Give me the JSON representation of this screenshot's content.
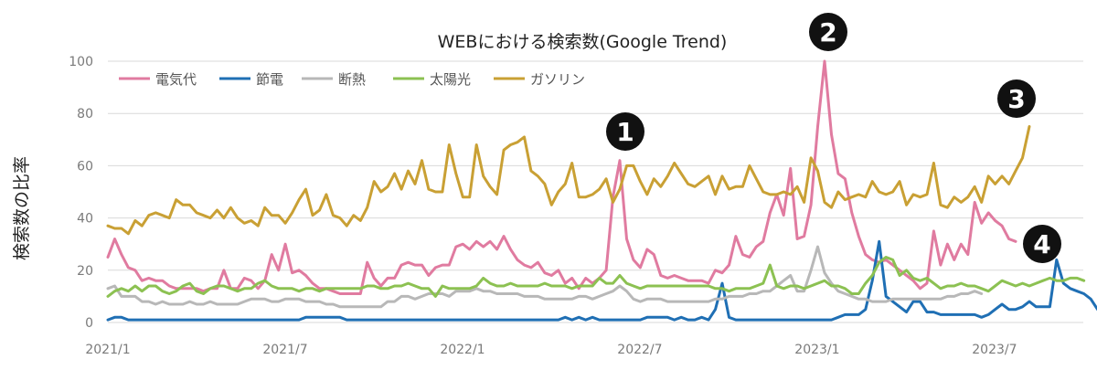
{
  "chart_data": {
    "type": "line",
    "title": "WEBにおける検索数(Google Trend)",
    "ylabel": "検索数の比率",
    "xlabel": "",
    "ylim": [
      0,
      100
    ],
    "yticks": [
      "0",
      "20",
      "40",
      "60",
      "80",
      "100"
    ],
    "xticks": [
      "2021/1",
      "2021/7",
      "2022/1",
      "2022/7",
      "2023/1",
      "2023/7"
    ],
    "x_start": "2021-01",
    "points_per_month": 4.33,
    "grid": true,
    "legend_position": "top-left",
    "series": [
      {
        "name": "電気代",
        "color": "#e07ba0",
        "values": [
          25,
          32,
          26,
          21,
          20,
          16,
          17,
          16,
          16,
          14,
          13,
          13,
          13,
          13,
          12,
          13,
          13,
          20,
          13,
          13,
          17,
          16,
          13,
          16,
          26,
          20,
          30,
          19,
          20,
          18,
          15,
          13,
          13,
          12,
          11,
          11,
          11,
          11,
          23,
          17,
          14,
          17,
          17,
          22,
          23,
          22,
          22,
          18,
          21,
          22,
          22,
          29,
          30,
          28,
          31,
          29,
          31,
          28,
          33,
          28,
          24,
          22,
          21,
          23,
          19,
          18,
          20,
          15,
          17,
          13,
          17,
          15,
          17,
          20,
          48,
          62,
          32,
          24,
          21,
          28,
          26,
          18,
          17,
          18,
          17,
          16,
          16,
          16,
          15,
          20,
          19,
          22,
          33,
          26,
          25,
          29,
          31,
          42,
          49,
          41,
          59,
          32,
          33,
          45,
          75,
          100,
          72,
          57,
          55,
          42,
          33,
          26,
          24,
          23,
          24,
          22,
          20,
          18,
          16,
          13,
          15,
          35,
          22,
          30,
          24,
          30,
          26,
          46,
          38,
          42,
          39,
          37,
          32,
          31
        ]
      },
      {
        "name": "節電",
        "color": "#1f6fb4",
        "values": [
          1,
          2,
          2,
          1,
          1,
          1,
          1,
          1,
          1,
          1,
          1,
          1,
          1,
          1,
          1,
          1,
          1,
          1,
          1,
          1,
          1,
          1,
          1,
          1,
          1,
          1,
          1,
          1,
          1,
          2,
          2,
          2,
          2,
          2,
          2,
          1,
          1,
          1,
          1,
          1,
          1,
          1,
          1,
          1,
          1,
          1,
          1,
          1,
          1,
          1,
          1,
          1,
          1,
          1,
          1,
          1,
          1,
          1,
          1,
          1,
          1,
          1,
          1,
          1,
          1,
          1,
          1,
          2,
          1,
          2,
          1,
          2,
          1,
          1,
          1,
          1,
          1,
          1,
          1,
          2,
          2,
          2,
          2,
          1,
          2,
          1,
          1,
          2,
          1,
          5,
          15,
          2,
          1,
          1,
          1,
          1,
          1,
          1,
          1,
          1,
          1,
          1,
          1,
          1,
          1,
          1,
          1,
          2,
          3,
          3,
          3,
          5,
          16,
          31,
          10,
          8,
          6,
          4,
          8,
          8,
          4,
          4,
          3,
          3,
          3,
          3,
          3,
          3,
          2,
          3,
          5,
          7,
          5,
          5,
          6,
          8,
          6,
          6,
          6,
          24,
          15,
          13,
          12,
          11,
          9,
          5,
          7,
          10,
          14,
          9,
          6,
          5,
          4,
          4,
          3,
          3,
          2,
          2,
          3,
          3,
          3,
          2,
          2,
          3,
          3,
          3,
          3,
          4,
          4,
          4,
          4,
          4,
          4,
          3,
          4
        ]
      },
      {
        "name": "断熱",
        "color": "#b8b8b8",
        "values": [
          13,
          14,
          10,
          10,
          10,
          8,
          8,
          7,
          8,
          7,
          7,
          7,
          8,
          7,
          7,
          8,
          7,
          7,
          7,
          7,
          8,
          9,
          9,
          9,
          8,
          8,
          9,
          9,
          9,
          8,
          8,
          8,
          7,
          7,
          6,
          6,
          6,
          6,
          6,
          6,
          6,
          8,
          8,
          10,
          10,
          9,
          10,
          11,
          11,
          11,
          10,
          12,
          12,
          12,
          13,
          12,
          12,
          11,
          11,
          11,
          11,
          10,
          10,
          10,
          9,
          9,
          9,
          9,
          9,
          10,
          10,
          9,
          10,
          11,
          12,
          14,
          12,
          9,
          8,
          9,
          9,
          9,
          8,
          8,
          8,
          8,
          8,
          8,
          8,
          9,
          9,
          10,
          10,
          10,
          11,
          11,
          12,
          12,
          14,
          16,
          18,
          12,
          12,
          20,
          29,
          19,
          15,
          12,
          11,
          10,
          9,
          9,
          8,
          8,
          8,
          9,
          9,
          9,
          9,
          9,
          9,
          9,
          9,
          10,
          10,
          11,
          11,
          12,
          11
        ]
      },
      {
        "name": "太陽光",
        "color": "#8cc152",
        "values": [
          10,
          12,
          13,
          12,
          14,
          12,
          14,
          14,
          12,
          11,
          12,
          14,
          15,
          12,
          11,
          13,
          14,
          14,
          13,
          12,
          13,
          13,
          15,
          16,
          14,
          13,
          13,
          13,
          12,
          13,
          13,
          12,
          13,
          13,
          13,
          13,
          13,
          13,
          14,
          14,
          13,
          13,
          14,
          14,
          15,
          14,
          13,
          13,
          10,
          14,
          13,
          13,
          13,
          13,
          14,
          17,
          15,
          14,
          14,
          15,
          14,
          14,
          14,
          14,
          15,
          14,
          14,
          14,
          13,
          14,
          14,
          14,
          17,
          15,
          15,
          18,
          15,
          14,
          13,
          14,
          14,
          14,
          14,
          14,
          14,
          14,
          14,
          14,
          14,
          13,
          13,
          12,
          13,
          13,
          13,
          14,
          15,
          22,
          14,
          13,
          14,
          14,
          13,
          14,
          15,
          16,
          14,
          14,
          13,
          11,
          11,
          15,
          18,
          23,
          25,
          24,
          18,
          20,
          17,
          16,
          17,
          15,
          13,
          14,
          14,
          15,
          14,
          14,
          13,
          12,
          14,
          16,
          15,
          14,
          15,
          14,
          15,
          16,
          17,
          16,
          16,
          17,
          17,
          16
        ]
      },
      {
        "name": "ガソリン",
        "color": "#c9a034",
        "values": [
          37,
          36,
          36,
          34,
          39,
          37,
          41,
          42,
          41,
          40,
          47,
          45,
          45,
          42,
          41,
          40,
          43,
          40,
          44,
          40,
          38,
          39,
          37,
          44,
          41,
          41,
          38,
          42,
          47,
          51,
          41,
          43,
          49,
          41,
          40,
          37,
          41,
          39,
          44,
          54,
          50,
          52,
          57,
          51,
          58,
          53,
          62,
          51,
          50,
          50,
          68,
          57,
          48,
          48,
          68,
          56,
          52,
          49,
          66,
          68,
          69,
          71,
          58,
          56,
          53,
          45,
          50,
          53,
          61,
          48,
          48,
          49,
          51,
          55,
          46,
          51,
          60,
          60,
          54,
          49,
          55,
          52,
          56,
          61,
          57,
          53,
          52,
          54,
          56,
          49,
          56,
          51,
          52,
          52,
          60,
          55,
          50,
          49,
          49,
          50,
          49,
          52,
          46,
          63,
          58,
          46,
          44,
          50,
          47,
          48,
          49,
          48,
          54,
          50,
          49,
          50,
          54,
          45,
          49,
          48,
          49,
          61,
          45,
          44,
          48,
          46,
          48,
          52,
          46,
          56,
          53,
          56,
          53,
          58,
          63,
          75
        ]
      }
    ],
    "annotations": [
      "1",
      "2",
      "3",
      "4"
    ]
  }
}
